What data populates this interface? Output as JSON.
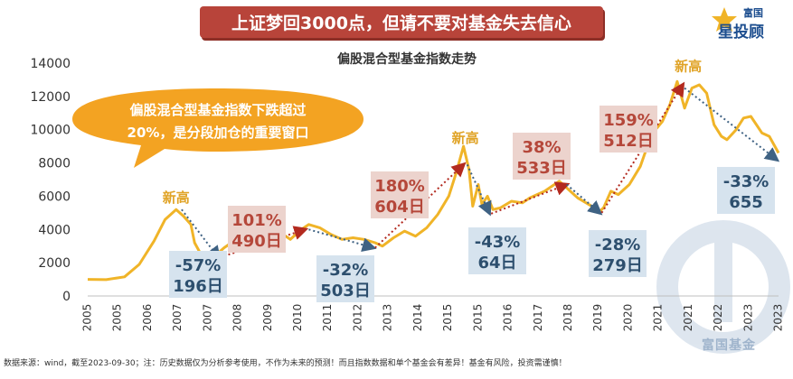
{
  "header": {
    "banner": "上证梦回3000点，但请不要对基金失去信心",
    "logo_top": "富国",
    "logo_bottom": "星投顾"
  },
  "callout": {
    "line1": "偏股混合型基金指数下跌超过",
    "line2": "20%，是分段加仓的重要窗口"
  },
  "watermark": "富国基金",
  "footnote": "数据来源：wind，截至2023-09-30；注：历史数据仅为分析参考使用，不作为未来的预测！而且指数数据和单个基金会有差异！基金有风险，投资需谨慎！",
  "colors": {
    "line": "#f0b428",
    "up_box": "#ecd3cd",
    "up_text": "#b5473a",
    "down_box": "#d6e3ee",
    "down_text": "#2d4f6e",
    "up_arrow": "#b32a1f",
    "down_arrow": "#3f6283",
    "peak_label": "#e0a326",
    "callout": "#f3a322"
  },
  "chart_data": {
    "type": "line",
    "title": "偏股混合型基金指数走势",
    "xlabel": "",
    "ylabel": "",
    "ylim": [
      0,
      14000
    ],
    "yticks": [
      0,
      2000,
      4000,
      6000,
      8000,
      10000,
      12000,
      14000
    ],
    "xticks": [
      "2005",
      "2005",
      "2006",
      "2007",
      "2007",
      "2008",
      "2009",
      "2010",
      "2011",
      "2012",
      "2013",
      "2014",
      "2015",
      "2015",
      "2016",
      "2017",
      "2018",
      "2019",
      "2020",
      "2021",
      "2021",
      "2022",
      "2023",
      "2023"
    ],
    "grid": false,
    "legend": "none",
    "series": [
      {
        "x": [
          2005.0,
          2005.5,
          2006.0,
          2006.4,
          2006.8,
          2007.1,
          2007.4,
          2007.6,
          2007.8,
          2007.9,
          2008.1,
          2008.3,
          2008.5,
          2008.7,
          2008.9,
          2009.1,
          2009.3,
          2009.6,
          2009.8,
          2010.0,
          2010.3,
          2010.5,
          2010.8,
          2011.0,
          2011.3,
          2011.6,
          2011.9,
          2012.2,
          2012.5,
          2012.8,
          2013.0,
          2013.3,
          2013.6,
          2013.9,
          2014.2,
          2014.5,
          2014.8,
          2015.0,
          2015.2,
          2015.35,
          2015.45,
          2015.6,
          2015.7,
          2015.85,
          2016.0,
          2016.2,
          2016.5,
          2016.8,
          2017.0,
          2017.4,
          2017.8,
          2018.0,
          2018.3,
          2018.6,
          2018.9,
          2019.0,
          2019.2,
          2019.4,
          2019.7,
          2020.0,
          2020.3,
          2020.6,
          2020.8,
          2021.0,
          2021.1,
          2021.2,
          2021.4,
          2021.6,
          2021.8,
          2022.0,
          2022.2,
          2022.35,
          2022.6,
          2022.8,
          2023.0,
          2023.3,
          2023.5,
          2023.75
        ],
        "y": [
          1000,
          980,
          1150,
          1900,
          3300,
          4600,
          5200,
          4800,
          4300,
          3200,
          2400,
          2100,
          2500,
          2900,
          3200,
          3350,
          3900,
          3400,
          4000,
          3600,
          3700,
          3400,
          4000,
          4300,
          4100,
          3700,
          3400,
          3500,
          3400,
          3200,
          3000,
          3500,
          3900,
          3600,
          4100,
          4900,
          6000,
          7400,
          9000,
          7600,
          5400,
          6700,
          5500,
          6000,
          5200,
          5300,
          5700,
          5600,
          5900,
          6300,
          6900,
          6500,
          5900,
          5500,
          5100,
          5300,
          6300,
          6100,
          6700,
          7800,
          9700,
          10500,
          11500,
          12900,
          12100,
          11300,
          12500,
          12700,
          12200,
          10300,
          9600,
          9400,
          10000,
          10700,
          10800,
          9800,
          9600,
          8600
        ]
      }
    ],
    "annotations": [
      {
        "kind": "peak",
        "text": "新高",
        "x": 2007.4,
        "y": 5200
      },
      {
        "kind": "peak",
        "text": "新高",
        "x": 2015.25,
        "y": 8800
      },
      {
        "kind": "peak",
        "text": "新高",
        "x": 2021.3,
        "y": 13100
      },
      {
        "kind": "down",
        "pct": "-57%",
        "days": "196日",
        "from": [
          2007.55,
          5200
        ],
        "to": [
          2008.55,
          2300
        ]
      },
      {
        "kind": "up",
        "pct": "101%",
        "days": "490日",
        "from": [
          2008.7,
          2400
        ],
        "to": [
          2010.9,
          4000
        ]
      },
      {
        "kind": "down",
        "pct": "-32%",
        "days": "503日",
        "from": [
          2011.0,
          4000
        ],
        "to": [
          2012.75,
          2900
        ]
      },
      {
        "kind": "up",
        "pct": "180%",
        "days": "604日",
        "from": [
          2012.8,
          2900
        ],
        "to": [
          2015.2,
          7900
        ]
      },
      {
        "kind": "down",
        "pct": "-43%",
        "days": "64日",
        "from": [
          2015.3,
          7900
        ],
        "to": [
          2015.9,
          5000
        ]
      },
      {
        "kind": "up",
        "pct": "38%",
        "days": "533日",
        "from": [
          2015.95,
          4950
        ],
        "to": [
          2018.0,
          6700
        ]
      },
      {
        "kind": "down",
        "pct": "-28%",
        "days": "279日",
        "from": [
          2018.0,
          6700
        ],
        "to": [
          2018.9,
          5000
        ]
      },
      {
        "kind": "up",
        "pct": "159%",
        "days": "512日",
        "from": [
          2018.95,
          5000
        ],
        "to": [
          2021.15,
          12700
        ]
      },
      {
        "kind": "down",
        "pct": "-33%",
        "days": "655",
        "from": [
          2021.2,
          12500
        ],
        "to": [
          2023.7,
          8200
        ]
      }
    ]
  }
}
